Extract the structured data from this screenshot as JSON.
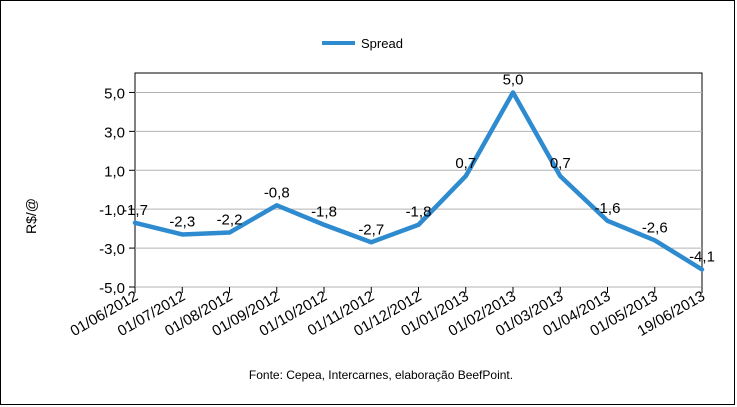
{
  "chart_data": {
    "type": "line",
    "categories": [
      "01/06/2012",
      "01/07/2012",
      "01/08/2012",
      "01/09/2012",
      "01/10/2012",
      "01/11/2012",
      "01/12/2012",
      "01/01/2013",
      "01/02/2013",
      "01/03/2013",
      "01/04/2013",
      "01/05/2013",
      "19/06/2013"
    ],
    "series": [
      {
        "name": "Spread",
        "values": [
          -1.7,
          -2.3,
          -2.2,
          -0.8,
          -1.8,
          -2.7,
          -1.8,
          0.7,
          5.0,
          0.7,
          -1.6,
          -2.6,
          -4.1
        ],
        "data_labels": [
          "-1,7",
          "-2,3",
          "-2,2",
          "-0,8",
          "-1,8",
          "-2,7",
          "-1,8",
          "0,7",
          "5,0",
          "0,7",
          "-1,6",
          "-2,6",
          "-4,1"
        ],
        "color": "#2e8bd0"
      }
    ],
    "ylabel": "R$/@",
    "xlabel": "",
    "ylim": [
      -5.0,
      6.0
    ],
    "yticks": [
      5.0,
      3.0,
      1.0,
      -1.0,
      -3.0,
      -5.0
    ],
    "ytick_labels": [
      "5,0",
      "3,0",
      "1,0",
      "-1,0",
      "-3,0",
      "-5,0"
    ],
    "grid": true,
    "legend_position": "top-center",
    "source_note": "Fonte: Cepea, Intercarnes, elaboração BeefPoint."
  }
}
